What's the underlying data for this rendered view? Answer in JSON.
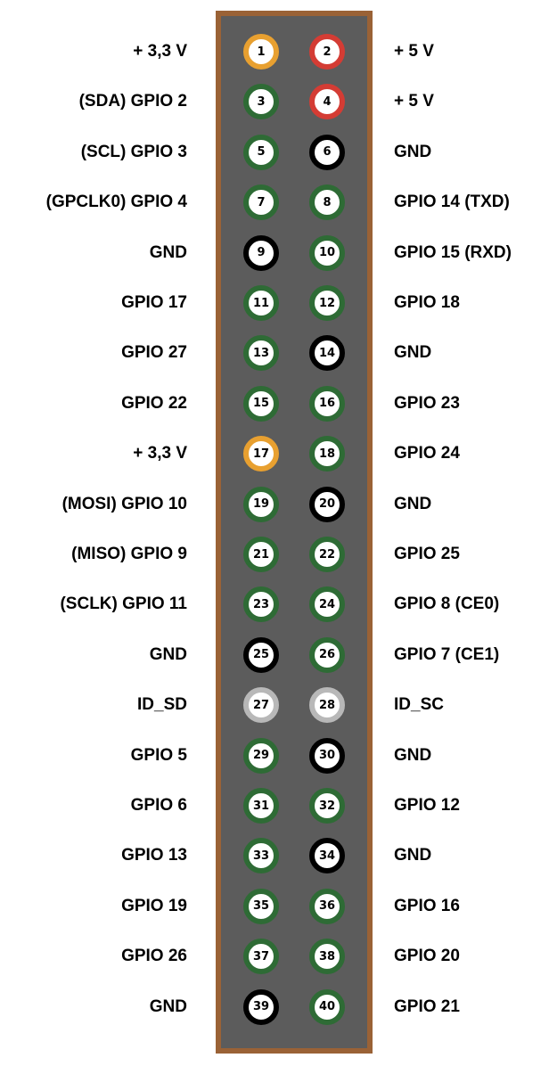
{
  "colors": {
    "board_border": "#9a6236",
    "board_fill": "#5c5c5c",
    "gpio": "#2e6b35",
    "power_3v3": "#e8a030",
    "power_5v": "#d43c34",
    "ground": "#000000",
    "id_eeprom": "#b8b8b8",
    "pin_face": "#ffffff"
  },
  "pins": [
    {
      "left": {
        "number": "1",
        "label": "+ 3,3 V",
        "type": "power_3v3"
      },
      "right": {
        "number": "2",
        "label": "+ 5 V",
        "type": "power_5v"
      }
    },
    {
      "left": {
        "number": "3",
        "label": "(SDA) GPIO 2",
        "type": "gpio"
      },
      "right": {
        "number": "4",
        "label": "+ 5 V",
        "type": "power_5v"
      }
    },
    {
      "left": {
        "number": "5",
        "label": "(SCL) GPIO 3",
        "type": "gpio"
      },
      "right": {
        "number": "6",
        "label": "GND",
        "type": "ground"
      }
    },
    {
      "left": {
        "number": "7",
        "label": "(GPCLK0) GPIO 4",
        "type": "gpio"
      },
      "right": {
        "number": "8",
        "label": "GPIO 14 (TXD)",
        "type": "gpio"
      }
    },
    {
      "left": {
        "number": "9",
        "label": "GND",
        "type": "ground"
      },
      "right": {
        "number": "10",
        "label": "GPIO 15 (RXD)",
        "type": "gpio"
      }
    },
    {
      "left": {
        "number": "11",
        "label": "GPIO 17",
        "type": "gpio"
      },
      "right": {
        "number": "12",
        "label": "GPIO 18",
        "type": "gpio"
      }
    },
    {
      "left": {
        "number": "13",
        "label": "GPIO 27",
        "type": "gpio"
      },
      "right": {
        "number": "14",
        "label": "GND",
        "type": "ground"
      }
    },
    {
      "left": {
        "number": "15",
        "label": "GPIO 22",
        "type": "gpio"
      },
      "right": {
        "number": "16",
        "label": "GPIO 23",
        "type": "gpio"
      }
    },
    {
      "left": {
        "number": "17",
        "label": "+ 3,3 V",
        "type": "power_3v3"
      },
      "right": {
        "number": "18",
        "label": "GPIO 24",
        "type": "gpio"
      }
    },
    {
      "left": {
        "number": "19",
        "label": "(MOSI) GPIO 10",
        "type": "gpio"
      },
      "right": {
        "number": "20",
        "label": "GND",
        "type": "ground"
      }
    },
    {
      "left": {
        "number": "21",
        "label": "(MISO) GPIO 9",
        "type": "gpio"
      },
      "right": {
        "number": "22",
        "label": "GPIO 25",
        "type": "gpio"
      }
    },
    {
      "left": {
        "number": "23",
        "label": "(SCLK) GPIO 11",
        "type": "gpio"
      },
      "right": {
        "number": "24",
        "label": "GPIO 8 (CE0)",
        "type": "gpio"
      }
    },
    {
      "left": {
        "number": "25",
        "label": "GND",
        "type": "ground"
      },
      "right": {
        "number": "26",
        "label": "GPIO 7 (CE1)",
        "type": "gpio"
      }
    },
    {
      "left": {
        "number": "27",
        "label": "ID_SD",
        "type": "id_eeprom"
      },
      "right": {
        "number": "28",
        "label": "ID_SC",
        "type": "id_eeprom"
      }
    },
    {
      "left": {
        "number": "29",
        "label": "GPIO 5",
        "type": "gpio"
      },
      "right": {
        "number": "30",
        "label": "GND",
        "type": "ground"
      }
    },
    {
      "left": {
        "number": "31",
        "label": "GPIO 6",
        "type": "gpio"
      },
      "right": {
        "number": "32",
        "label": "GPIO 12",
        "type": "gpio"
      }
    },
    {
      "left": {
        "number": "33",
        "label": "GPIO 13",
        "type": "gpio"
      },
      "right": {
        "number": "34",
        "label": "GND",
        "type": "ground"
      }
    },
    {
      "left": {
        "number": "35",
        "label": "GPIO 19",
        "type": "gpio"
      },
      "right": {
        "number": "36",
        "label": "GPIO 16",
        "type": "gpio"
      }
    },
    {
      "left": {
        "number": "37",
        "label": "GPIO 26",
        "type": "gpio"
      },
      "right": {
        "number": "38",
        "label": "GPIO 20",
        "type": "gpio"
      }
    },
    {
      "left": {
        "number": "39",
        "label": "GND",
        "type": "ground"
      },
      "right": {
        "number": "40",
        "label": "GPIO 21",
        "type": "gpio"
      }
    }
  ]
}
